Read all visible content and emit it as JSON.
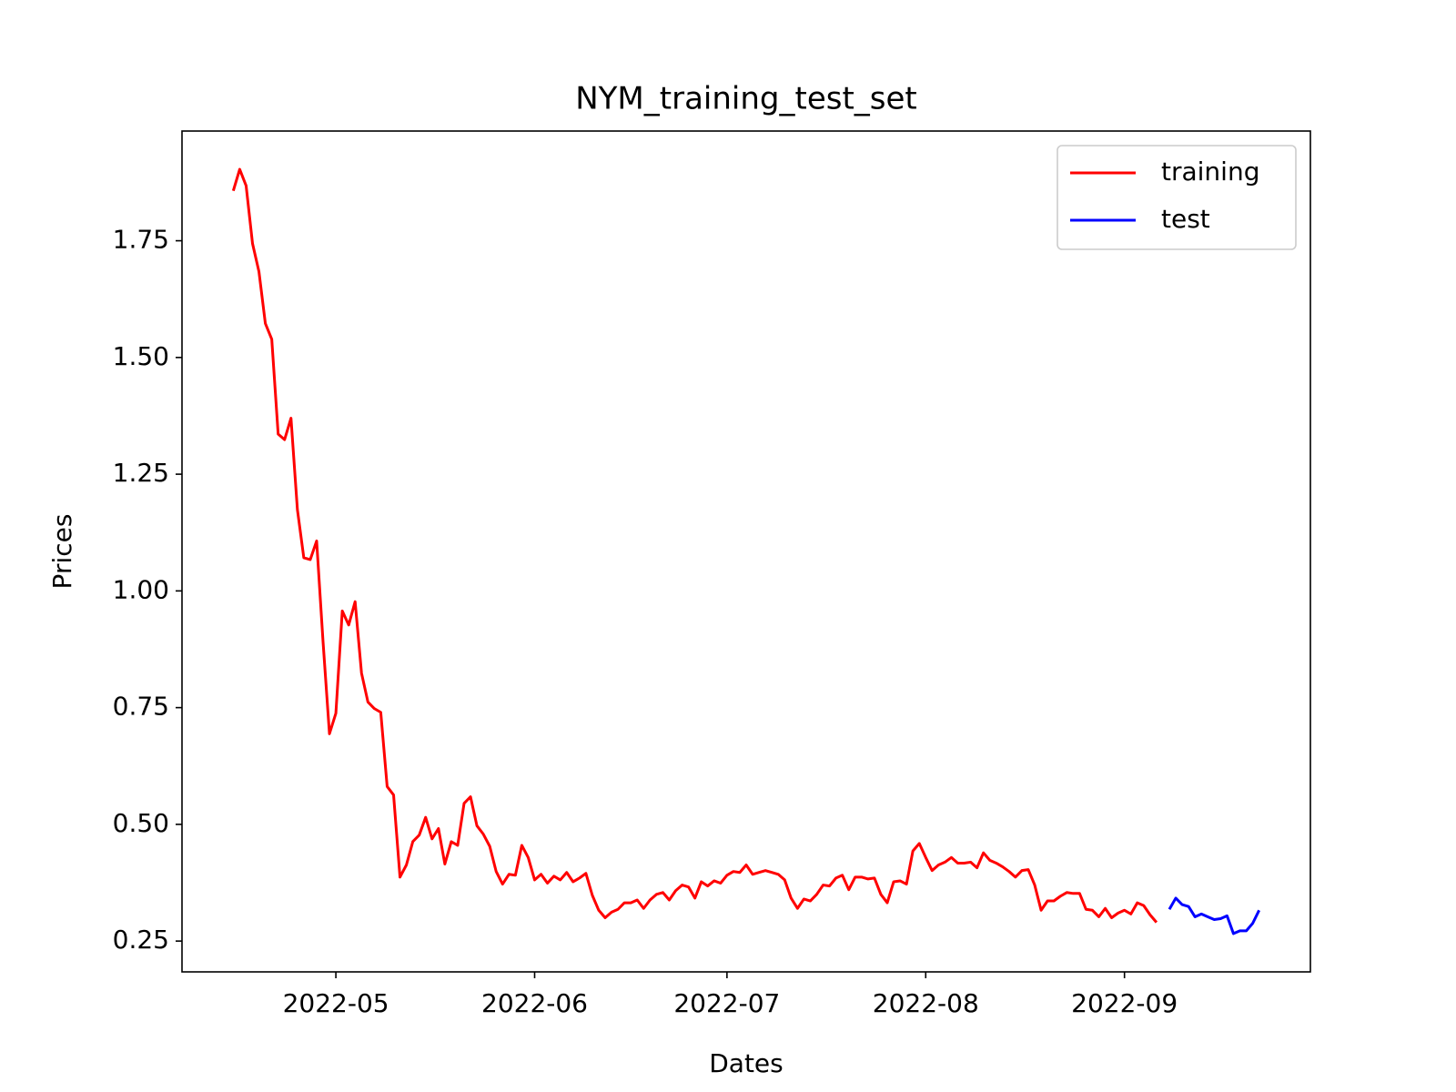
{
  "chart_data": {
    "type": "line",
    "title": "NYM_training_test_set",
    "xlabel": "Dates",
    "ylabel": "Prices",
    "legend": "upper right",
    "xlim": [
      "2022-04-07",
      "2022-09-30"
    ],
    "xticks": [
      {
        "value": "2022-05-01",
        "label": "2022-05"
      },
      {
        "value": "2022-06-01",
        "label": "2022-06"
      },
      {
        "value": "2022-07-01",
        "label": "2022-07"
      },
      {
        "value": "2022-08-01",
        "label": "2022-08"
      },
      {
        "value": "2022-09-01",
        "label": "2022-09"
      }
    ],
    "ylim": [
      0.184,
      1.985
    ],
    "yticks": [
      0.25,
      {
        "value": 0.5,
        "label": "0.50"
      },
      0.75,
      {
        "value": 1.0,
        "label": "1.00"
      },
      1.25,
      {
        "value": 1.5,
        "label": "1.50"
      },
      1.75
    ],
    "series": [
      {
        "name": "training",
        "color": "#ff0000",
        "x": [
          "2022-04-15",
          "2022-04-16",
          "2022-04-17",
          "2022-04-18",
          "2022-04-19",
          "2022-04-20",
          "2022-04-21",
          "2022-04-22",
          "2022-04-23",
          "2022-04-24",
          "2022-04-25",
          "2022-04-26",
          "2022-04-27",
          "2022-04-28",
          "2022-04-29",
          "2022-04-30",
          "2022-05-01",
          "2022-05-02",
          "2022-05-03",
          "2022-05-04",
          "2022-05-05",
          "2022-05-06",
          "2022-05-07",
          "2022-05-08",
          "2022-05-09",
          "2022-05-10",
          "2022-05-11",
          "2022-05-12",
          "2022-05-13",
          "2022-05-14",
          "2022-05-15",
          "2022-05-16",
          "2022-05-17",
          "2022-05-18",
          "2022-05-19",
          "2022-05-20",
          "2022-05-21",
          "2022-05-22",
          "2022-05-23",
          "2022-05-24",
          "2022-05-25",
          "2022-05-26",
          "2022-05-27",
          "2022-05-28",
          "2022-05-29",
          "2022-05-30",
          "2022-05-31",
          "2022-06-01",
          "2022-06-02",
          "2022-06-03",
          "2022-06-04",
          "2022-06-05",
          "2022-06-06",
          "2022-06-07",
          "2022-06-08",
          "2022-06-09",
          "2022-06-10",
          "2022-06-11",
          "2022-06-12",
          "2022-06-13",
          "2022-06-14",
          "2022-06-15",
          "2022-06-16",
          "2022-06-17",
          "2022-06-18",
          "2022-06-19",
          "2022-06-20",
          "2022-06-21",
          "2022-06-22",
          "2022-06-23",
          "2022-06-24",
          "2022-06-25",
          "2022-06-26",
          "2022-06-27",
          "2022-06-28",
          "2022-06-29",
          "2022-06-30",
          "2022-07-01",
          "2022-07-02",
          "2022-07-03",
          "2022-07-04",
          "2022-07-05",
          "2022-07-06",
          "2022-07-07",
          "2022-07-08",
          "2022-07-09",
          "2022-07-10",
          "2022-07-11",
          "2022-07-12",
          "2022-07-13",
          "2022-07-14",
          "2022-07-15",
          "2022-07-16",
          "2022-07-17",
          "2022-07-18",
          "2022-07-19",
          "2022-07-20",
          "2022-07-21",
          "2022-07-22",
          "2022-07-23",
          "2022-07-24",
          "2022-07-25",
          "2022-07-26",
          "2022-07-27",
          "2022-07-28",
          "2022-07-29",
          "2022-07-30",
          "2022-07-31",
          "2022-08-01",
          "2022-08-02",
          "2022-08-03",
          "2022-08-04",
          "2022-08-05",
          "2022-08-06",
          "2022-08-07",
          "2022-08-08",
          "2022-08-09",
          "2022-08-10",
          "2022-08-11",
          "2022-08-12",
          "2022-08-13",
          "2022-08-14",
          "2022-08-15",
          "2022-08-16",
          "2022-08-17",
          "2022-08-18",
          "2022-08-19",
          "2022-08-20",
          "2022-08-21",
          "2022-08-22",
          "2022-08-23",
          "2022-08-24",
          "2022-08-25",
          "2022-08-26",
          "2022-08-27",
          "2022-08-28",
          "2022-08-29",
          "2022-08-30",
          "2022-08-31",
          "2022-09-01",
          "2022-09-02",
          "2022-09-03",
          "2022-09-04",
          "2022-09-05",
          "2022-09-06"
        ],
        "values": [
          1.857,
          1.903,
          1.868,
          1.744,
          1.684,
          1.573,
          1.539,
          1.336,
          1.324,
          1.37,
          1.174,
          1.071,
          1.067,
          1.107,
          0.891,
          0.694,
          0.738,
          0.957,
          0.927,
          0.977,
          0.824,
          0.762,
          0.748,
          0.74,
          0.581,
          0.563,
          0.387,
          0.413,
          0.463,
          0.477,
          0.515,
          0.469,
          0.491,
          0.415,
          0.463,
          0.455,
          0.545,
          0.559,
          0.497,
          0.479,
          0.453,
          0.399,
          0.372,
          0.393,
          0.391,
          0.455,
          0.429,
          0.381,
          0.393,
          0.374,
          0.389,
          0.381,
          0.397,
          0.377,
          0.385,
          0.395,
          0.348,
          0.316,
          0.3,
          0.312,
          0.318,
          0.332,
          0.332,
          0.338,
          0.32,
          0.338,
          0.35,
          0.354,
          0.338,
          0.358,
          0.37,
          0.366,
          0.342,
          0.377,
          0.368,
          0.379,
          0.374,
          0.391,
          0.399,
          0.397,
          0.413,
          0.393,
          0.397,
          0.401,
          0.397,
          0.393,
          0.381,
          0.342,
          0.32,
          0.34,
          0.336,
          0.35,
          0.37,
          0.368,
          0.385,
          0.391,
          0.36,
          0.387,
          0.387,
          0.383,
          0.385,
          0.35,
          0.332,
          0.377,
          0.379,
          0.372,
          0.443,
          0.459,
          0.429,
          0.401,
          0.413,
          0.419,
          0.429,
          0.417,
          0.417,
          0.419,
          0.407,
          0.439,
          0.423,
          0.417,
          0.409,
          0.399,
          0.387,
          0.401,
          0.403,
          0.37,
          0.316,
          0.336,
          0.336,
          0.346,
          0.354,
          0.352,
          0.352,
          0.318,
          0.316,
          0.302,
          0.32,
          0.3,
          0.31,
          0.316,
          0.308,
          0.332,
          0.326,
          0.306,
          0.29
        ]
      },
      {
        "name": "test",
        "color": "#0000ff",
        "x": [
          "2022-09-08",
          "2022-09-09",
          "2022-09-10",
          "2022-09-11",
          "2022-09-12",
          "2022-09-13",
          "2022-09-14",
          "2022-09-15",
          "2022-09-16",
          "2022-09-17",
          "2022-09-18",
          "2022-09-19",
          "2022-09-20",
          "2022-09-21",
          "2022-09-22"
        ],
        "values": [
          0.318,
          0.342,
          0.328,
          0.324,
          0.302,
          0.308,
          0.302,
          0.296,
          0.298,
          0.304,
          0.266,
          0.272,
          0.272,
          0.288,
          0.316
        ]
      }
    ]
  }
}
